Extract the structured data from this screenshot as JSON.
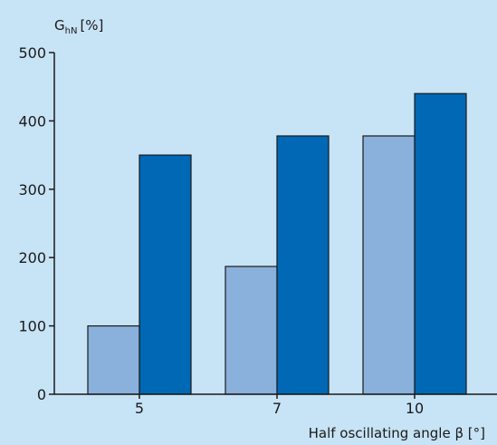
{
  "chart_data": {
    "type": "bar",
    "title": "",
    "xlabel": "Half oscillating angle β [°]",
    "ylabel": {
      "main": "G",
      "subscript": "hN",
      "unit": "[%]"
    },
    "categories": [
      "5",
      "7",
      "10"
    ],
    "series": [
      {
        "values": [
          100,
          187,
          378
        ]
      },
      {
        "values": [
          350,
          378,
          440
        ]
      }
    ],
    "ylim": [
      0,
      500
    ],
    "yticks": [
      0,
      100,
      200,
      300,
      400,
      500
    ],
    "grid": false,
    "legend": "none",
    "colors": {
      "background": "#c7e3f6",
      "series_light": "#8ab0dc",
      "series_dark": "#0068b4",
      "axis": "#1a1a1a",
      "bar_border": "#1a1a1a"
    }
  }
}
